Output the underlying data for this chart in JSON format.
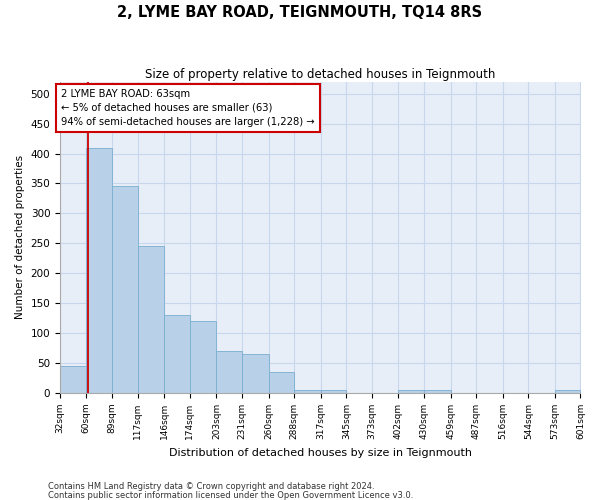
{
  "title": "2, LYME BAY ROAD, TEIGNMOUTH, TQ14 8RS",
  "subtitle": "Size of property relative to detached houses in Teignmouth",
  "xlabel": "Distribution of detached houses by size in Teignmouth",
  "ylabel": "Number of detached properties",
  "bar_color": "#b8d0e8",
  "bar_edge_color": "#7aaed0",
  "grid_color": "#c8d8ec",
  "background_color": "#e8eef8",
  "annotation_text": "2 LYME BAY ROAD: 63sqm\n← 5% of detached houses are smaller (63)\n94% of semi-detached houses are larger (1,228) →",
  "property_line_x": 63,
  "property_line_color": "#cc0000",
  "footer_line1": "Contains HM Land Registry data © Crown copyright and database right 2024.",
  "footer_line2": "Contains public sector information licensed under the Open Government Licence v3.0.",
  "bins": [
    32,
    60,
    89,
    117,
    146,
    174,
    203,
    231,
    260,
    288,
    317,
    345,
    373,
    402,
    430,
    459,
    487,
    516,
    544,
    573,
    601
  ],
  "counts": [
    45,
    410,
    345,
    245,
    130,
    120,
    70,
    65,
    35,
    5,
    5,
    0,
    0,
    5,
    5,
    0,
    0,
    0,
    0,
    5
  ],
  "ylim": [
    0,
    520
  ],
  "yticks": [
    0,
    50,
    100,
    150,
    200,
    250,
    300,
    350,
    400,
    450,
    500
  ]
}
